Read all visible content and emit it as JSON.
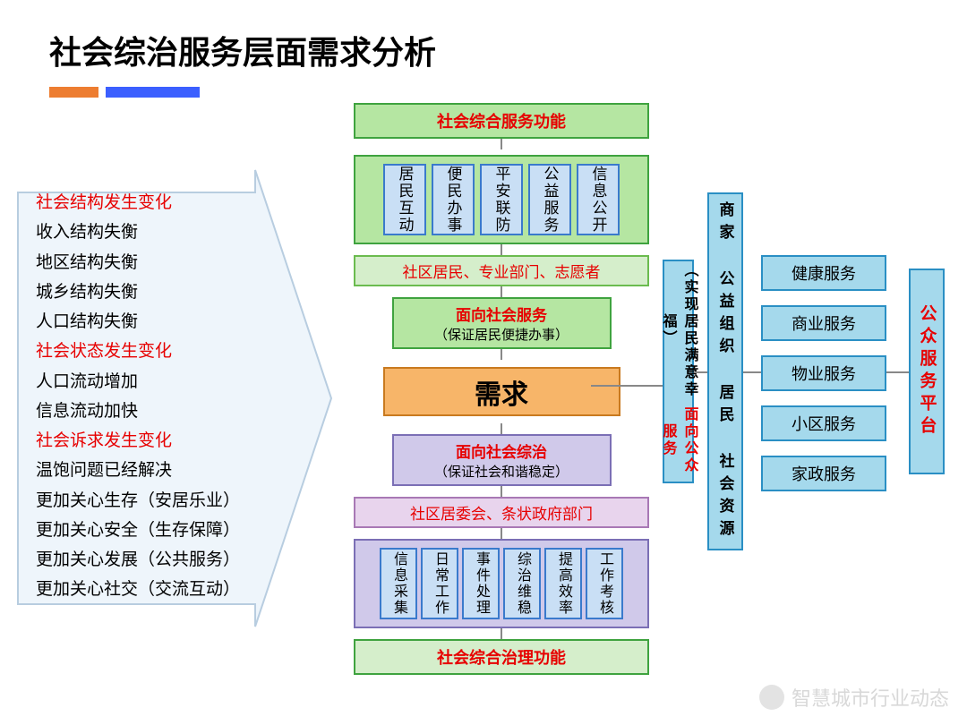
{
  "title": "社会综治服务层面需求分析",
  "colors": {
    "orange_bar": "#ed7d31",
    "blue_bar": "#3b5fff",
    "red_text": "#e70000",
    "green_fill": "#b5e6a2",
    "green_border": "#3fa33f",
    "blue_fill": "#c9dff5",
    "blue_border": "#3a7acc",
    "purple_fill": "#d0c9ea",
    "purple_border": "#7b6fb5",
    "cyan_fill": "#a5d9ec",
    "cyan_border": "#2a8fc4",
    "orange_fill": "#f7b569",
    "orange_border": "#c97a1f",
    "arrow_fill": "#eef5fb",
    "arrow_stroke": "#b8cde0"
  },
  "left_items": [
    {
      "text": "社会结构发生变化",
      "red": true
    },
    {
      "text": "收入结构失衡",
      "red": false
    },
    {
      "text": "地区结构失衡",
      "red": false
    },
    {
      "text": "城乡结构失衡",
      "red": false
    },
    {
      "text": "人口结构失衡",
      "red": false
    },
    {
      "text": "社会状态发生变化",
      "red": true
    },
    {
      "text": "人口流动增加",
      "red": false
    },
    {
      "text": "信息流动加快",
      "red": false
    },
    {
      "text": "社会诉求发生变化",
      "red": true
    },
    {
      "text": "温饱问题已经解决",
      "red": false
    },
    {
      "text": "更加关心生存（安居乐业）",
      "red": false
    },
    {
      "text": "更加关心安全（生存保障）",
      "red": false
    },
    {
      "text": "更加关心发展（公共服务）",
      "red": false
    },
    {
      "text": "更加关心社交（交流互动）",
      "red": false
    }
  ],
  "top_header": "社会综合服务功能",
  "top_functions": [
    "居民互动",
    "便民办事",
    "平安联防",
    "公益服务",
    "信息公开"
  ],
  "top_actors": "社区居民、专业部门、志愿者",
  "service_top": {
    "title": "面向社会服务",
    "sub": "（保证居民便捷办事）"
  },
  "demand": "需求",
  "service_bottom": {
    "title": "面向社会综治",
    "sub": "（保证社会和谐稳定）"
  },
  "bottom_actors": "社区居委会、条状政府部门",
  "bottom_functions": [
    "信息采集",
    "日常工作",
    "事件处理",
    "综治维稳",
    "提高效率",
    "工作考核"
  ],
  "bottom_header": "社会综合治理功能",
  "right_col1": {
    "title": "面向公众服务",
    "sub": "（实现居民满意幸福）"
  },
  "right_col2": "商家 公益组织 居民 社会资源",
  "services": [
    "健康服务",
    "商业服务",
    "物业服务",
    "小区服务",
    "家政服务"
  ],
  "platform": "公众服务平台",
  "watermark": "智慧城市行业动态"
}
